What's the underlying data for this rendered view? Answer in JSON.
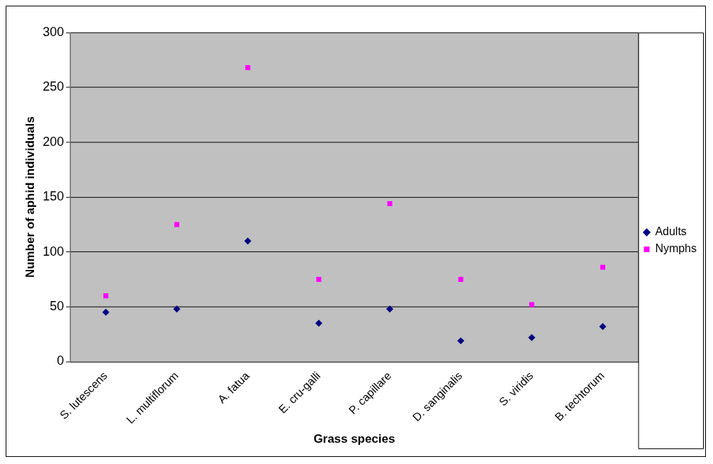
{
  "chart_data": {
    "type": "scatter",
    "xlabel": "Grass species",
    "ylabel": "Number of aphid individuals",
    "categories": [
      "S. lutescens",
      "L. multiflorum",
      "A. fatua",
      "E. cru-galli",
      "P. capillare",
      "D. sanginalis",
      "S. viridis",
      "B. techtorum"
    ],
    "series": [
      {
        "name": "Adults",
        "color": "#000080",
        "marker": "diamond",
        "values": [
          45,
          48,
          110,
          35,
          48,
          19,
          22,
          32
        ]
      },
      {
        "name": "Nymphs",
        "color": "#ff00ff",
        "marker": "square",
        "values": [
          60,
          125,
          268,
          75,
          144,
          75,
          52,
          86
        ]
      }
    ],
    "ylim": [
      0,
      300
    ],
    "yticks": [
      0,
      50,
      100,
      150,
      200,
      250,
      300
    ],
    "grid": "y",
    "legend": "right"
  }
}
